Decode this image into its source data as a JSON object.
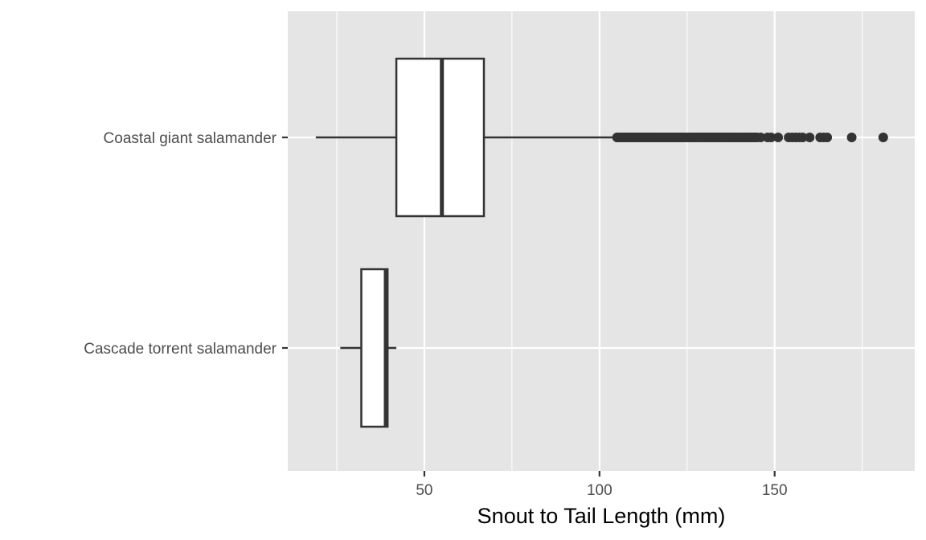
{
  "chart_data": {
    "type": "boxplot",
    "orientation": "horizontal",
    "title": "",
    "xlabel": "Snout to Tail Length (mm)",
    "ylabel": "",
    "xlim": [
      11,
      190
    ],
    "x_major_ticks": [
      50,
      100,
      150
    ],
    "x_minor_ticks": [
      25,
      75,
      125,
      175
    ],
    "grid": true,
    "panel_background": "#e5e5e5",
    "grid_color": "#ffffff",
    "box_fill": "#ffffff",
    "box_stroke": "#333333",
    "categories": [
      "Coastal giant salamander",
      "Cascade torrent salamander"
    ],
    "boxes": [
      {
        "name": "Coastal giant salamander",
        "whisker_low": 19,
        "q1": 42,
        "median": 55,
        "q3": 67,
        "whisker_high": 104,
        "outliers": [
          105,
          105.5,
          106,
          106.5,
          107,
          107.5,
          108,
          108.5,
          109,
          109.5,
          110,
          110.5,
          111,
          111.5,
          112,
          112.5,
          113,
          113.5,
          114,
          114.5,
          115,
          115.5,
          116,
          116.5,
          117,
          117.5,
          118,
          118.5,
          119,
          119.5,
          120,
          120.5,
          121,
          121.5,
          122,
          122.5,
          123,
          123.5,
          124,
          124.5,
          125,
          125.5,
          126,
          126.5,
          127,
          127.5,
          128,
          128.5,
          129,
          129.5,
          130,
          130.5,
          131,
          131.5,
          132,
          132.5,
          133,
          133.5,
          134,
          134.5,
          135,
          135.5,
          136,
          136.5,
          137,
          137.5,
          138,
          138.5,
          139,
          139.5,
          140,
          140.5,
          141,
          141.5,
          142,
          142.5,
          143,
          143.5,
          144,
          144.5,
          145,
          146,
          148,
          149,
          151,
          154,
          155,
          156,
          157,
          158,
          160,
          163,
          164,
          165,
          172,
          181
        ]
      },
      {
        "name": "Cascade torrent salamander",
        "whisker_low": 26,
        "q1": 32,
        "median": 39,
        "q3": 39.5,
        "whisker_high": 42,
        "outliers": []
      }
    ]
  }
}
